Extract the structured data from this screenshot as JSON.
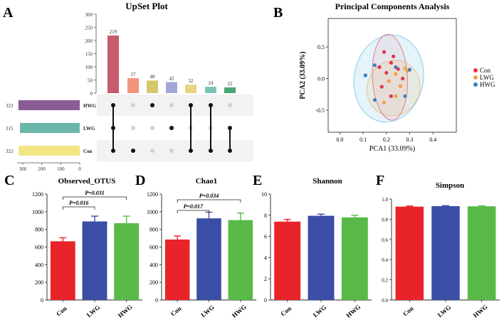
{
  "panels": {
    "A": "A",
    "B": "B",
    "C": "C",
    "D": "D",
    "E": "E",
    "F": "F"
  },
  "chart_data": [
    {
      "id": "A",
      "type": "bar",
      "subtype": "upset",
      "title": "UpSet Plot",
      "yticks": [
        0,
        50,
        100,
        150,
        200,
        250,
        300
      ],
      "ylim": [
        0,
        300
      ],
      "intersections": [
        {
          "value": 219,
          "color": "#c75a6c",
          "members": [
            "Con",
            "LWG",
            "HWG"
          ]
        },
        {
          "value": 57,
          "color": "#f0957a",
          "members": [
            "Con"
          ]
        },
        {
          "value": 48,
          "color": "#d4c96a",
          "members": [
            "HWG"
          ]
        },
        {
          "value": 42,
          "color": "#a3a7d8",
          "members": [
            "LWG"
          ]
        },
        {
          "value": 32,
          "color": "#e8d37f",
          "members": [
            "Con",
            "HWG"
          ]
        },
        {
          "value": 24,
          "color": "#7cc3b6",
          "members": [
            "Con",
            "HWG"
          ]
        },
        {
          "value": 22,
          "color": "#4aa775",
          "members": [
            "Con",
            "LWG"
          ]
        }
      ],
      "sets": [
        {
          "name": "HWG",
          "size": 323,
          "color": "#8b5c96"
        },
        {
          "name": "LWG",
          "size": 315,
          "color": "#6ab6a9"
        },
        {
          "name": "Con",
          "size": 322,
          "color": "#f1e584"
        }
      ],
      "set_xticks": [
        300,
        200,
        100,
        0
      ],
      "set_xlim": [
        0,
        330
      ]
    },
    {
      "id": "B",
      "type": "scatter",
      "title": "Principal Components Analysis",
      "xlabel": "PCA1 (33.09%)",
      "ylabel": "PCA2 (33.09%)",
      "xlim": [
        -0.05,
        0.5
      ],
      "ylim": [
        -0.85,
        0.95
      ],
      "xticks": [
        "0.0",
        "0.1",
        "0.2",
        "0.3",
        "0.4"
      ],
      "yticks": [
        "0.5",
        "0.0",
        "-0.5"
      ],
      "ytick_values": [
        0.5,
        0.0,
        -0.5
      ],
      "xtick_values": [
        0.0,
        0.1,
        0.2,
        0.3,
        0.4
      ],
      "series": [
        {
          "name": "Con",
          "color": "#e0354d",
          "points": [
            [
              0.19,
              0.42
            ],
            [
              0.23,
              0.35
            ],
            [
              0.22,
              0.25
            ],
            [
              0.17,
              0.18
            ],
            [
              0.25,
              0.15
            ],
            [
              0.2,
              0.09
            ],
            [
              0.27,
              0.0
            ],
            [
              0.18,
              -0.13
            ],
            [
              0.22,
              -0.28
            ]
          ]
        },
        {
          "name": "LWG",
          "color": "#f2a048",
          "points": [
            [
              0.28,
              0.16
            ],
            [
              0.29,
              0.12
            ],
            [
              0.24,
              0.07
            ],
            [
              0.21,
              -0.04
            ],
            [
              0.26,
              -0.12
            ],
            [
              0.24,
              -0.28
            ],
            [
              0.19,
              -0.38
            ]
          ]
        },
        {
          "name": "HWG",
          "color": "#3b7fc2",
          "points": [
            [
              0.11,
              0.05
            ],
            [
              0.15,
              0.21
            ],
            [
              0.3,
              0.14
            ],
            [
              0.24,
              0.18
            ],
            [
              0.15,
              -0.34
            ],
            [
              0.28,
              -0.28
            ]
          ]
        }
      ],
      "ellipses": [
        {
          "name": "Con",
          "cx": 0.215,
          "cy": 0.02,
          "rx": 0.075,
          "ry": 0.68,
          "angle": 3,
          "stroke": "#e07d8f",
          "fill": "rgba(232,130,150,0.12)"
        },
        {
          "name": "LWG",
          "cx": 0.23,
          "cy": -0.15,
          "rx": 0.16,
          "ry": 0.47,
          "angle": 65,
          "stroke": "#e8c48a",
          "fill": "rgba(240,205,150,0.25)"
        },
        {
          "name": "HWG",
          "cx": 0.21,
          "cy": 0.0,
          "rx": 0.27,
          "ry": 0.66,
          "angle": 80,
          "stroke": "#8ccbe6",
          "fill": "rgba(150,210,235,0.25)"
        }
      ]
    },
    {
      "id": "C",
      "type": "bar",
      "title": "Observed_OTUS",
      "categories": [
        "Con",
        "LWG",
        "HWG"
      ],
      "values": [
        665,
        890,
        870
      ],
      "errors": [
        40,
        60,
        80
      ],
      "colors": [
        "#e8242a",
        "#3b4ea6",
        "#59b947"
      ],
      "ylim": [
        0,
        1200
      ],
      "yticks": [
        0,
        200,
        400,
        600,
        800,
        1000,
        1200
      ],
      "annotations": [
        {
          "text": "P=0.016",
          "from": 0,
          "to": 1,
          "level": 1
        },
        {
          "text": "P=0.031",
          "from": 0,
          "to": 2,
          "level": 2
        }
      ]
    },
    {
      "id": "D",
      "type": "bar",
      "title": "Chao1",
      "categories": [
        "Con",
        "LWG",
        "HWG"
      ],
      "values": [
        685,
        925,
        905
      ],
      "errors": [
        40,
        70,
        80
      ],
      "colors": [
        "#e8242a",
        "#3b4ea6",
        "#59b947"
      ],
      "ylim": [
        0,
        1200
      ],
      "yticks": [
        0,
        200,
        400,
        600,
        800,
        1000,
        1200
      ],
      "annotations": [
        {
          "text": "P=0.017",
          "from": 0,
          "to": 1,
          "level": 1
        },
        {
          "text": "P=0.034",
          "from": 0,
          "to": 2,
          "level": 2
        }
      ]
    },
    {
      "id": "E",
      "type": "bar",
      "title": "Shannon",
      "categories": [
        "Con",
        "LWG",
        "HWG"
      ],
      "values": [
        7.4,
        7.95,
        7.8
      ],
      "errors": [
        0.2,
        0.15,
        0.2
      ],
      "colors": [
        "#e8242a",
        "#3b4ea6",
        "#59b947"
      ],
      "ylim": [
        0,
        10
      ],
      "yticks": [
        0,
        2,
        4,
        6,
        8,
        10
      ],
      "annotations": []
    },
    {
      "id": "F",
      "type": "bar",
      "title": "Simpson",
      "categories": [
        "Con",
        "LWG",
        "HWG"
      ],
      "values": [
        0.925,
        0.93,
        0.928
      ],
      "errors": [
        0.006,
        0.004,
        0.005
      ],
      "colors": [
        "#e8242a",
        "#3b4ea6",
        "#59b947"
      ],
      "ylim": [
        0,
        1.0
      ],
      "yticks": [
        "0.0",
        "0.2",
        "0.4",
        "0.6",
        "0.8",
        "1.0"
      ],
      "annotations": []
    }
  ]
}
